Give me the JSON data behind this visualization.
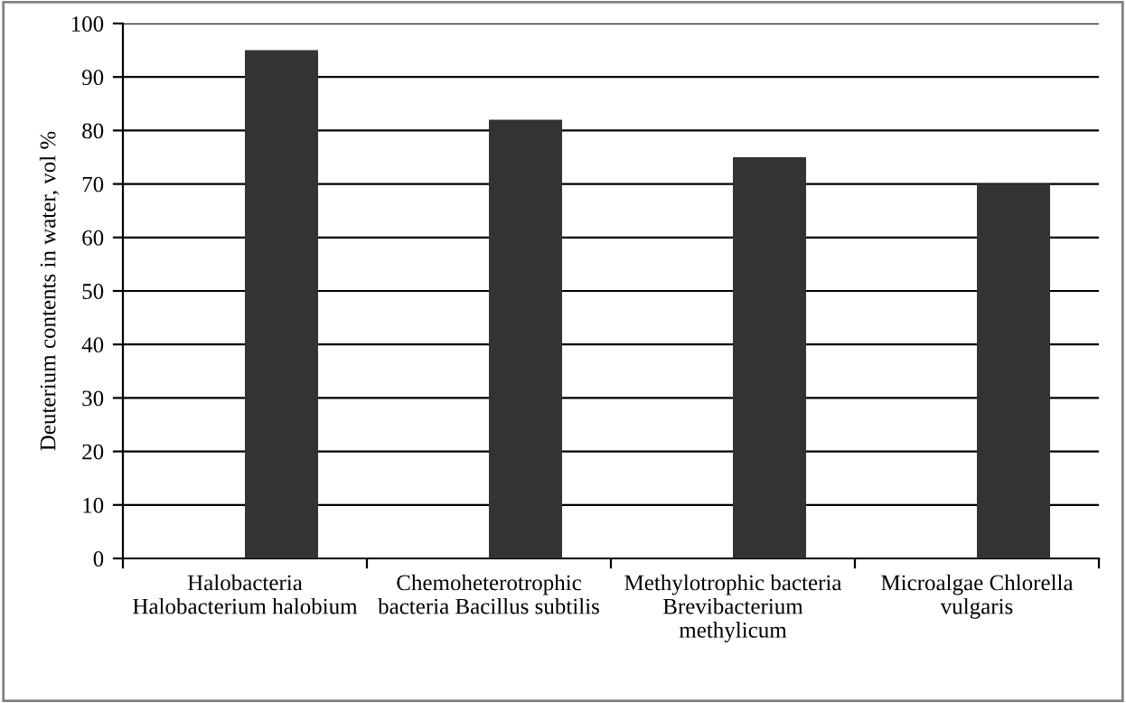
{
  "chart_data": {
    "type": "bar",
    "ylabel": "Deuterium contents in water, vol %",
    "categories": [
      "Halobacteria\nHalobacterium halobium",
      "Chemoheterotrophic\nbacteria Bacillus subtilis",
      "Methylotrophic bacteria\nBrevibacterium\nmethylicum",
      "Microalgae Chlorella\nvulgaris"
    ],
    "values": [
      95,
      82,
      75,
      70
    ],
    "color": "#333333",
    "ylim": [
      0,
      100
    ],
    "yticks": [
      0,
      10,
      20,
      30,
      40,
      50,
      60,
      70,
      80,
      90,
      100
    ],
    "grid": "y"
  }
}
